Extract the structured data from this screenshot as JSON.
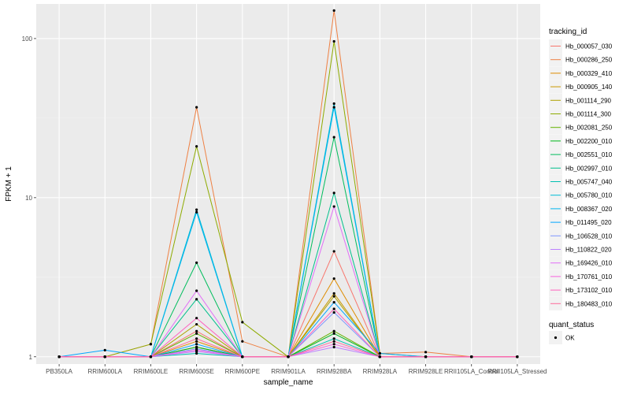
{
  "chart_data": {
    "type": "line",
    "xlabel": "sample_name",
    "ylabel": "FPKM + 1",
    "y_scale": "log10",
    "ylim": [
      0.9,
      165
    ],
    "y_ticks": [
      {
        "value": 1,
        "label": "1"
      },
      {
        "value": 10,
        "label": "10"
      },
      {
        "value": 100,
        "label": "100"
      }
    ],
    "categories": [
      "PB350LA",
      "RRIM600LA",
      "RRIM600LE",
      "RRIM600SE",
      "RRIM600PE",
      "RRIM901LA",
      "RRIM928BA",
      "RRIM928LA",
      "RRIM928LE",
      "RRII105LA_Control",
      "RRII105LA_Stressed"
    ],
    "legend": {
      "title": "tracking_id",
      "position": "right"
    },
    "shape_legend": {
      "title": "quant_status",
      "items": [
        "OK"
      ]
    },
    "panel_background": "#ebebeb",
    "grid": true,
    "series": [
      {
        "name": "Hb_000057_030",
        "color": "#F8766D",
        "values": [
          1,
          1,
          1,
          1.45,
          1,
          1,
          4.6,
          1,
          1,
          1,
          1
        ]
      },
      {
        "name": "Hb_000286_250",
        "color": "#EE8043",
        "values": [
          1,
          1,
          1.2,
          37,
          1.25,
          1,
          150,
          1.05,
          1.07,
          1,
          1
        ]
      },
      {
        "name": "Hb_000329_410",
        "color": "#DE8C00",
        "values": [
          1,
          1,
          1,
          1.25,
          1,
          1,
          3.1,
          1,
          1,
          1,
          1
        ]
      },
      {
        "name": "Hb_000905_140",
        "color": "#C99800",
        "values": [
          1,
          1,
          1,
          1.15,
          1,
          1,
          2.5,
          1,
          1,
          1,
          1
        ]
      },
      {
        "name": "Hb_001114_290",
        "color": "#AEA200",
        "values": [
          1,
          1,
          1,
          1.6,
          1,
          1,
          2.4,
          1,
          1,
          1,
          1
        ]
      },
      {
        "name": "Hb_001114_300",
        "color": "#8EAB00",
        "values": [
          1,
          1,
          1.2,
          21,
          1.65,
          1,
          96,
          1.05,
          1,
          1,
          1
        ]
      },
      {
        "name": "Hb_002081_250",
        "color": "#64B200",
        "values": [
          1,
          1,
          1,
          1.4,
          1,
          1,
          1.45,
          1,
          1,
          1,
          1
        ]
      },
      {
        "name": "Hb_002200_010",
        "color": "#00B81B",
        "values": [
          1,
          1,
          1,
          1.15,
          1,
          1,
          1.4,
          1,
          1,
          1,
          1
        ]
      },
      {
        "name": "Hb_002551_010",
        "color": "#00BD5C",
        "values": [
          1,
          1,
          1,
          3.9,
          1,
          1,
          24,
          1,
          1,
          1,
          1
        ]
      },
      {
        "name": "Hb_002997_010",
        "color": "#00C08B",
        "values": [
          1,
          1,
          1,
          2.3,
          1,
          1,
          10.7,
          1,
          1,
          1,
          1
        ]
      },
      {
        "name": "Hb_005747_040",
        "color": "#00C0B2",
        "values": [
          1,
          1,
          1,
          1.05,
          1,
          1,
          1.3,
          1,
          1,
          1,
          1
        ]
      },
      {
        "name": "Hb_005780_010",
        "color": "#00BCD6",
        "values": [
          1,
          1,
          1,
          8.4,
          1,
          1,
          39,
          1,
          1,
          1,
          1
        ]
      },
      {
        "name": "Hb_008367_020",
        "color": "#00B5EE",
        "values": [
          1,
          1,
          1,
          8.1,
          1,
          1,
          37,
          1,
          1,
          1,
          1
        ]
      },
      {
        "name": "Hb_011495_020",
        "color": "#00A6FF",
        "values": [
          1,
          1.1,
          1,
          1.2,
          1,
          1,
          2.2,
          1.05,
          1,
          1,
          1
        ]
      },
      {
        "name": "Hb_106528_010",
        "color": "#7F96FF",
        "values": [
          1,
          1,
          1,
          1.12,
          1,
          1,
          1.9,
          1,
          1,
          1,
          1
        ]
      },
      {
        "name": "Hb_110822_020",
        "color": "#BC81FF",
        "values": [
          1,
          1,
          1,
          1.08,
          1,
          1,
          1.15,
          1,
          1,
          1,
          1
        ]
      },
      {
        "name": "Hb_169426_010",
        "color": "#E26EF7",
        "values": [
          1,
          1,
          1,
          2.6,
          1,
          1,
          8.8,
          1,
          1,
          1,
          1
        ]
      },
      {
        "name": "Hb_170761_010",
        "color": "#F863DF",
        "values": [
          1,
          1,
          1,
          1.1,
          1,
          1,
          1.2,
          1,
          1,
          1,
          1
        ]
      },
      {
        "name": "Hb_173102_010",
        "color": "#FF62BF",
        "values": [
          1,
          1,
          1,
          1.75,
          1,
          1,
          2.0,
          1,
          1,
          1,
          1
        ]
      },
      {
        "name": "Hb_180483_010",
        "color": "#FF6A9A",
        "values": [
          1,
          1,
          1,
          1.3,
          1,
          1,
          1.25,
          1,
          1,
          1,
          1
        ]
      }
    ]
  }
}
